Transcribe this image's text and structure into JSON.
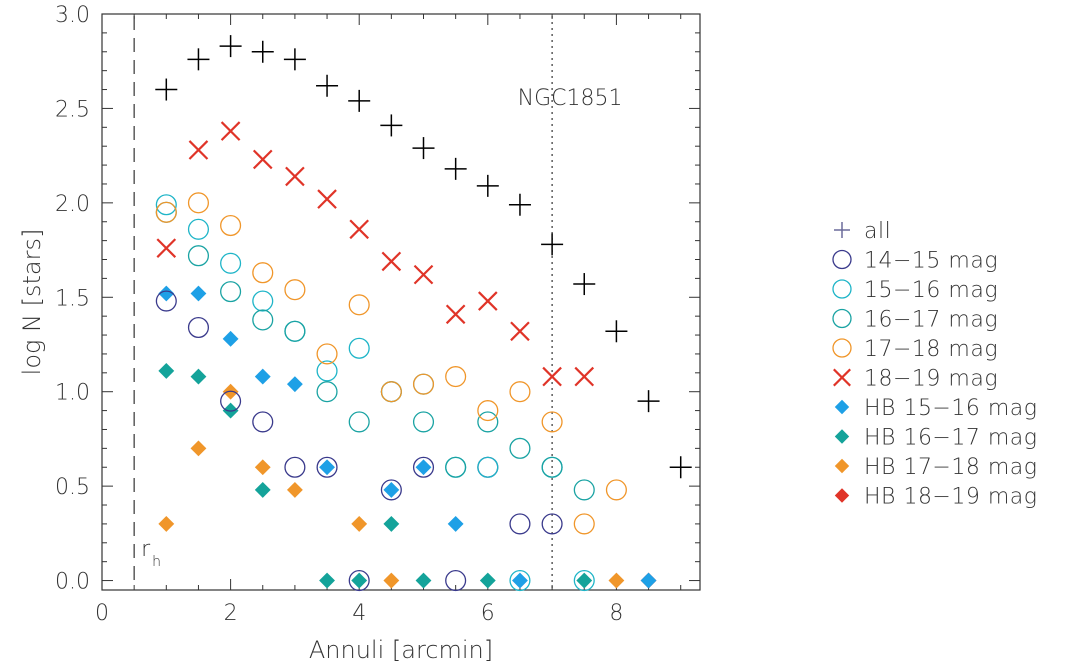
{
  "chart_data": {
    "type": "scatter",
    "xlabel": "Annuli [arcmin]",
    "ylabel": "log N [stars]",
    "xlim": [
      0,
      9.3
    ],
    "ylim": [
      -0.05,
      3.0
    ],
    "x_ticks": [
      "0",
      "2",
      "4",
      "6",
      "8"
    ],
    "y_ticks": [
      "0.0",
      "0.5",
      "1.0",
      "1.5",
      "2.0",
      "2.5",
      "3.0"
    ],
    "annotations": {
      "cluster_name": "NGC1851",
      "rh_label": "r",
      "rh_sub": "h",
      "rh_x": 0.5,
      "tidal_x": 7.0
    },
    "legend_position": "right, outside plot",
    "series": [
      {
        "name": "all",
        "marker": "plus",
        "color": "#000000",
        "x": [
          1,
          1.5,
          2,
          2.5,
          3,
          3.5,
          4,
          4.5,
          5,
          5.5,
          6,
          6.5,
          7,
          7.5,
          8,
          8.5,
          9
        ],
        "y": [
          2.6,
          2.76,
          2.83,
          2.8,
          2.76,
          2.62,
          2.54,
          2.41,
          2.29,
          2.18,
          2.09,
          1.99,
          1.78,
          1.57,
          1.32,
          0.95,
          0.6
        ]
      },
      {
        "name": "14–15 mag",
        "marker": "circle",
        "color": "#3a3a8c",
        "x": [
          1,
          1.5,
          2,
          2.5,
          3,
          3.5,
          4,
          4.5,
          5,
          5.5,
          6,
          6.5,
          7
        ],
        "y": [
          1.48,
          1.34,
          0.95,
          0.84,
          0.6,
          0.6,
          0.0,
          0.48,
          0.6,
          0.0,
          0.6,
          0.3,
          0.3
        ]
      },
      {
        "name": "15–16 mag",
        "marker": "circle",
        "color": "#1fb5c8",
        "x": [
          1,
          1.5,
          2,
          2.5,
          3,
          3.5,
          4,
          4.5,
          5,
          5.5,
          6,
          6.5,
          7,
          7.5
        ],
        "y": [
          1.99,
          1.86,
          1.68,
          1.48,
          1.32,
          1.11,
          1.23,
          1.0,
          1.04,
          0.6,
          0.6,
          0.0,
          0.6,
          0.0
        ]
      },
      {
        "name": "16–17 mag",
        "marker": "circle",
        "color": "#1aa3a3",
        "x": [
          1,
          1.5,
          2,
          2.5,
          3,
          3.5,
          4,
          4.5,
          5,
          5.5,
          6,
          6.5,
          7,
          7.5
        ],
        "y": [
          1.95,
          1.72,
          1.53,
          1.38,
          1.32,
          1.0,
          0.84,
          1.0,
          0.84,
          0.6,
          0.84,
          0.7,
          0.6,
          0.48
        ]
      },
      {
        "name": "17–18 mag",
        "marker": "circle",
        "color": "#f0962a",
        "x": [
          1,
          1.5,
          2,
          2.5,
          3,
          3.5,
          4,
          4.5,
          5,
          5.5,
          6,
          6.5,
          7,
          7.5,
          8
        ],
        "y": [
          1.95,
          2.0,
          1.88,
          1.63,
          1.54,
          1.2,
          1.46,
          1.0,
          1.04,
          1.08,
          0.9,
          1.0,
          0.84,
          0.3,
          0.48
        ]
      },
      {
        "name": "18–19 mag",
        "marker": "x",
        "color": "#e03428",
        "x": [
          1,
          1.5,
          2,
          2.5,
          3,
          3.5,
          4,
          4.5,
          5,
          5.5,
          6,
          6.5,
          7,
          7.5
        ],
        "y": [
          1.76,
          2.28,
          2.38,
          2.23,
          2.14,
          2.02,
          1.86,
          1.69,
          1.62,
          1.41,
          1.48,
          1.32,
          1.08,
          1.08
        ]
      },
      {
        "name": "HB 15–16 mag",
        "marker": "diamond",
        "color": "#1ea0e6",
        "x": [
          1,
          1.5,
          2,
          2.5,
          3,
          3.5,
          4.5,
          5,
          5.5,
          6.5,
          8.5
        ],
        "y": [
          1.52,
          1.52,
          1.28,
          1.08,
          1.04,
          0.6,
          0.48,
          0.6,
          0.3,
          0.0,
          0.0
        ]
      },
      {
        "name": "HB 16–17 mag",
        "marker": "diamond",
        "color": "#14a39a",
        "x": [
          1,
          1.5,
          2,
          2.5,
          3.5,
          4,
          4.5,
          5,
          6,
          7.5
        ],
        "y": [
          1.11,
          1.08,
          0.9,
          0.48,
          0.0,
          0.0,
          0.3,
          0.0,
          0.0,
          0.0
        ]
      },
      {
        "name": "HB 17–18 mag",
        "marker": "diamond",
        "color": "#f0962a",
        "x": [
          1,
          1.5,
          2,
          2.5,
          3,
          4,
          4.5,
          8
        ],
        "y": [
          0.3,
          0.7,
          1.0,
          0.6,
          0.48,
          0.3,
          0.0,
          0.0
        ]
      },
      {
        "name": "HB 18–19 mag",
        "marker": "diamond",
        "color": "#e03428",
        "x": [
          8.5
        ],
        "y": [
          0.0
        ]
      }
    ],
    "legend": [
      {
        "label": "all",
        "marker": "plus",
        "color": "#6b6b9a"
      },
      {
        "label": "14−15 mag",
        "marker": "circle",
        "color": "#3a3a8c"
      },
      {
        "label": "15−16 mag",
        "marker": "circle",
        "color": "#1fb5c8"
      },
      {
        "label": "16−17 mag",
        "marker": "circle",
        "color": "#1aa3a3"
      },
      {
        "label": "17−18 mag",
        "marker": "circle",
        "color": "#f0962a"
      },
      {
        "label": "18−19 mag",
        "marker": "x",
        "color": "#e03428"
      },
      {
        "label": "HB 15−16 mag",
        "marker": "diamond",
        "color": "#1ea0e6"
      },
      {
        "label": "HB 16−17 mag",
        "marker": "diamond",
        "color": "#14a39a"
      },
      {
        "label": "HB 17−18 mag",
        "marker": "diamond",
        "color": "#f0962a"
      },
      {
        "label": "HB 18−19 mag",
        "marker": "diamond",
        "color": "#e03428"
      }
    ]
  }
}
